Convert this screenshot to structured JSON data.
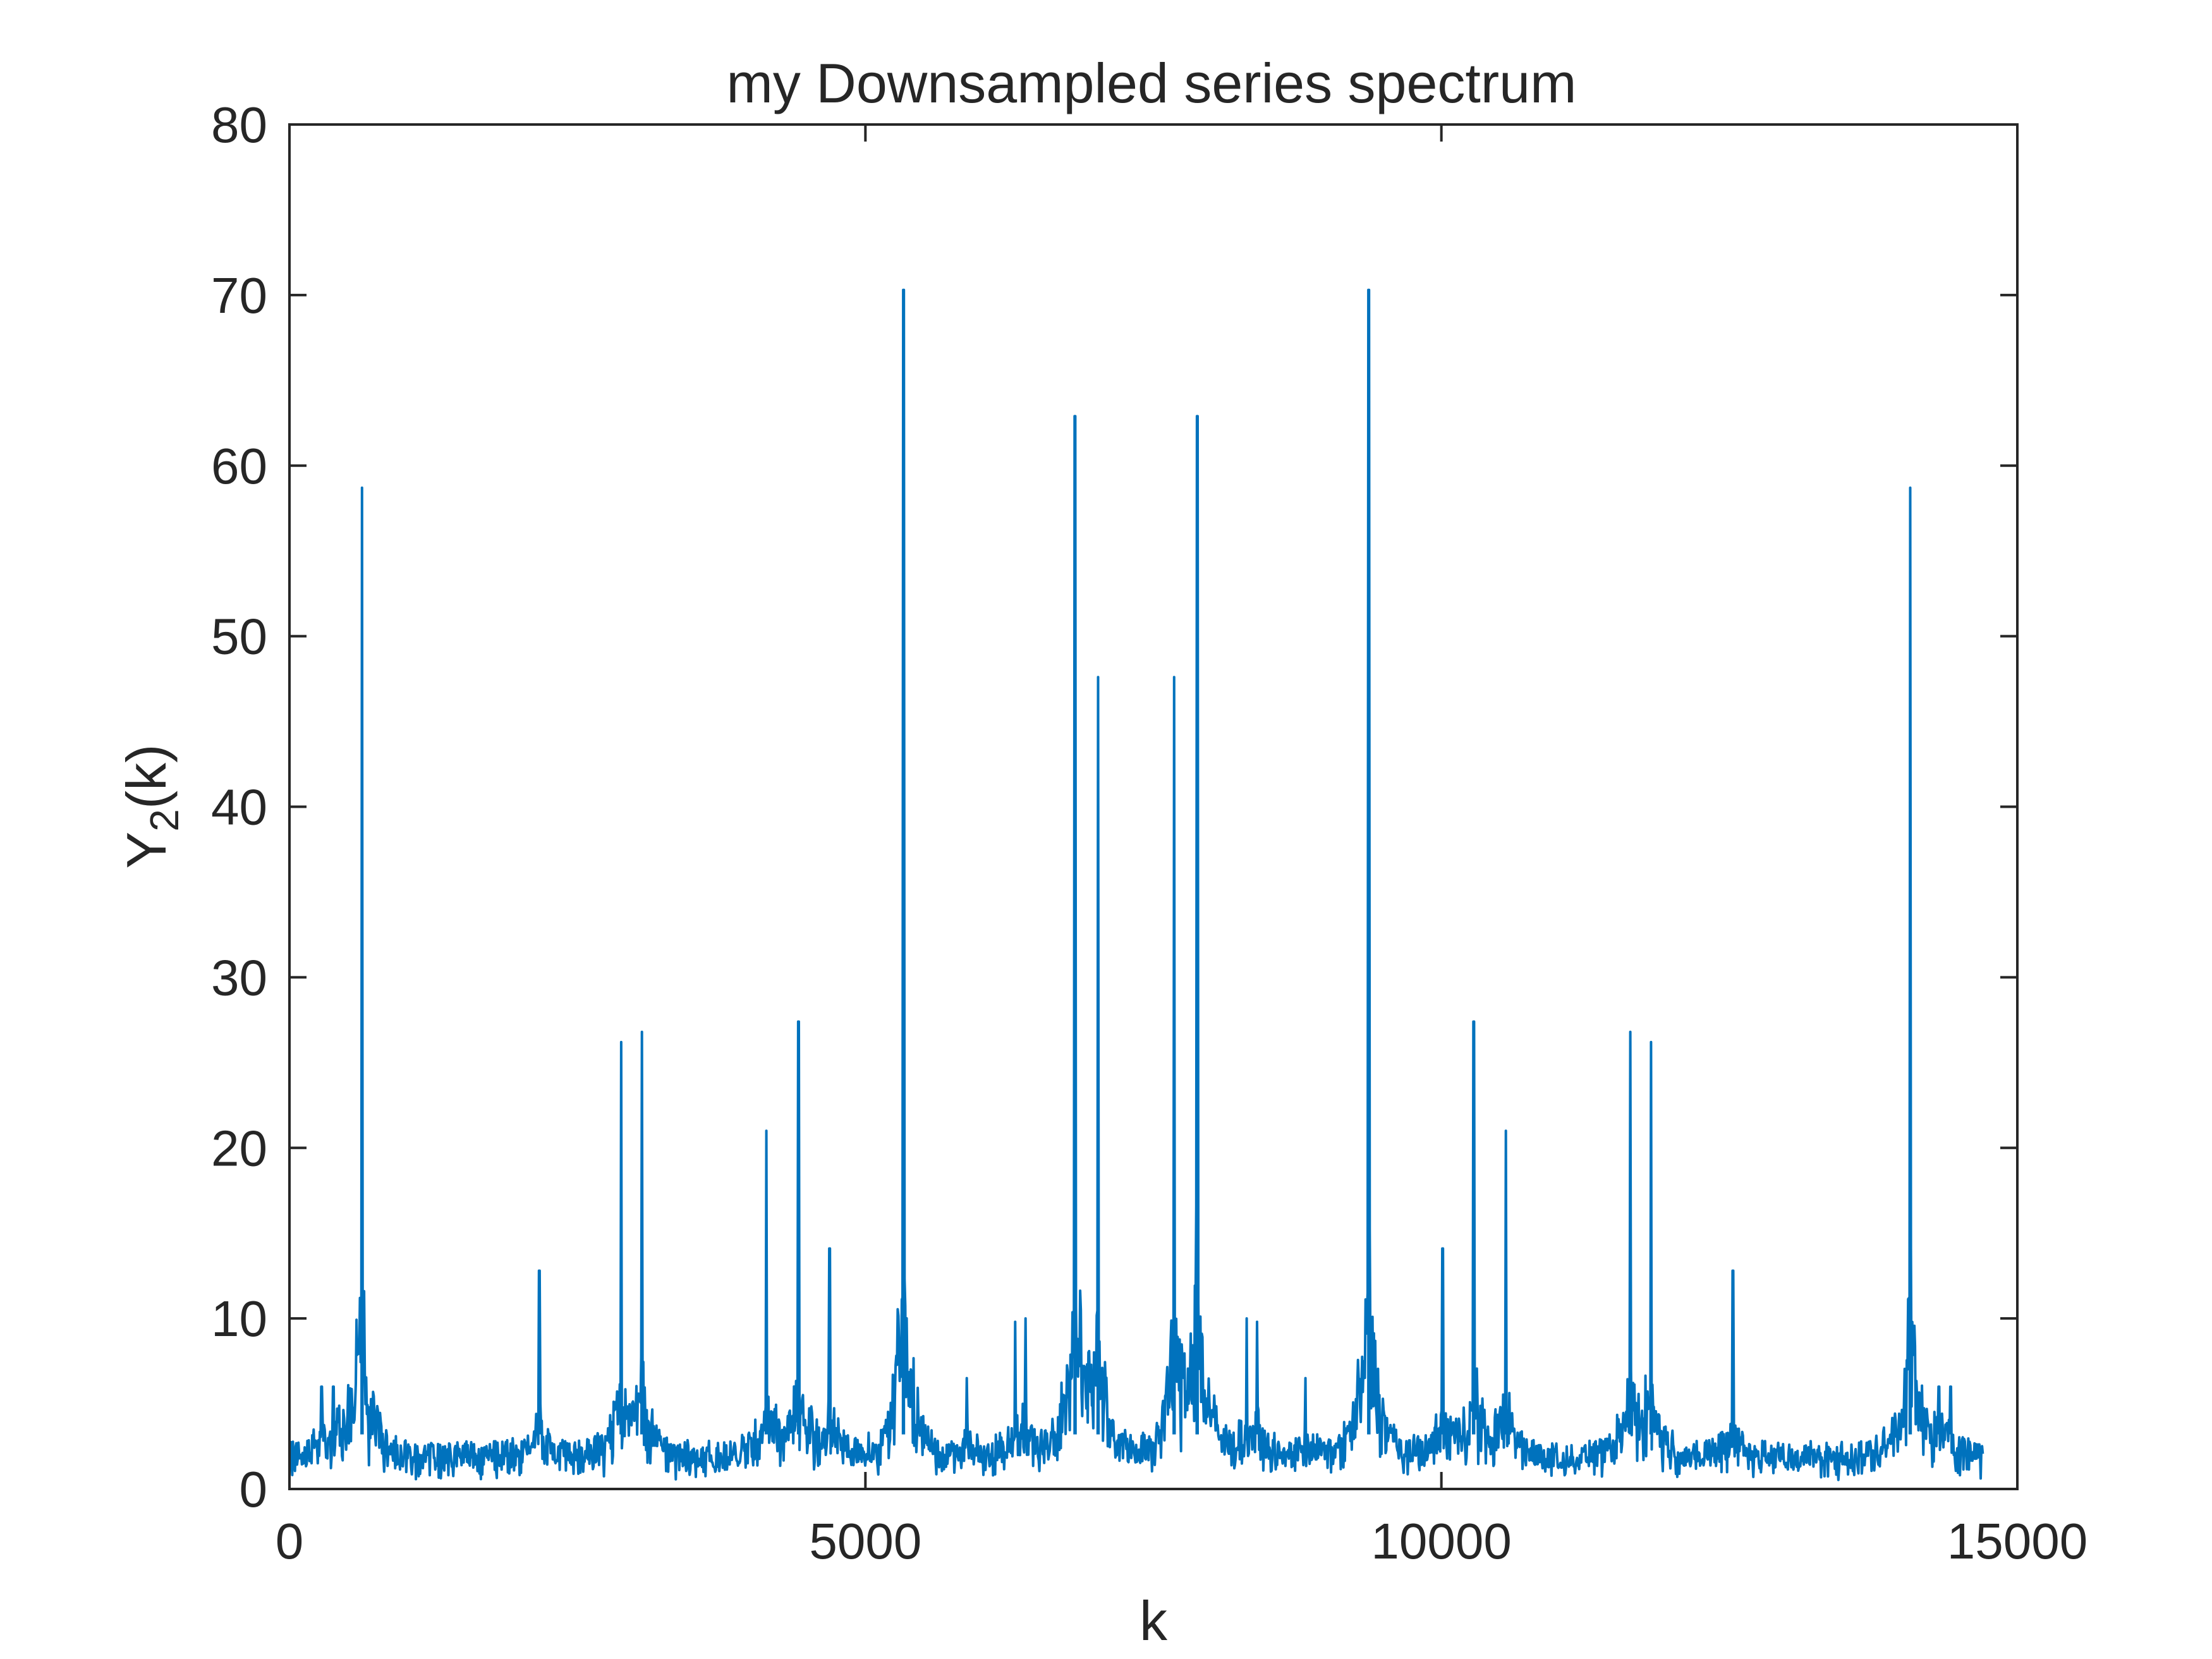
{
  "chart_data": {
    "type": "line",
    "title": "my Downsampled series spectrum",
    "xlabel": "k",
    "ylabel_main": "Y",
    "ylabel_sub": "2",
    "ylabel_tail": "(k)",
    "xlim": [
      0,
      15000
    ],
    "ylim": [
      0,
      80
    ],
    "xticks": [
      0,
      5000,
      10000,
      15000
    ],
    "xtick_labels": [
      "0",
      "5000",
      "10000",
      "15000"
    ],
    "yticks": [
      0,
      10,
      20,
      30,
      40,
      50,
      60,
      70,
      80
    ],
    "ytick_labels": [
      "0",
      "10",
      "20",
      "30",
      "40",
      "50",
      "60",
      "70",
      "80"
    ],
    "grid": false,
    "line_color": "#0072BD",
    "axis_color": "#262626",
    "series": [
      {
        "x_start": 0,
        "x_end": 14700,
        "baseline": 1.2,
        "peaks": [
          {
            "x": 280,
            "y": 6.0
          },
          {
            "x": 380,
            "y": 6.0
          },
          {
            "x": 630,
            "y": 58.7
          },
          {
            "x": 2170,
            "y": 12.8
          },
          {
            "x": 2880,
            "y": 26.2
          },
          {
            "x": 3060,
            "y": 26.8
          },
          {
            "x": 4140,
            "y": 21.0
          },
          {
            "x": 4420,
            "y": 27.4
          },
          {
            "x": 4690,
            "y": 14.1
          },
          {
            "x": 5330,
            "y": 70.3
          },
          {
            "x": 5880,
            "y": 6.5
          },
          {
            "x": 6300,
            "y": 9.8
          },
          {
            "x": 6390,
            "y": 10.0
          },
          {
            "x": 6820,
            "y": 62.9
          },
          {
            "x": 7020,
            "y": 47.6
          },
          {
            "x": 7680,
            "y": 47.6
          },
          {
            "x": 7880,
            "y": 62.9
          },
          {
            "x": 8310,
            "y": 10.0
          },
          {
            "x": 8400,
            "y": 9.8
          },
          {
            "x": 8820,
            "y": 6.5
          },
          {
            "x": 9370,
            "y": 70.3
          },
          {
            "x": 10010,
            "y": 14.1
          },
          {
            "x": 10280,
            "y": 27.4
          },
          {
            "x": 10560,
            "y": 21.0
          },
          {
            "x": 11640,
            "y": 26.8
          },
          {
            "x": 11820,
            "y": 26.2
          },
          {
            "x": 12530,
            "y": 12.8
          },
          {
            "x": 14070,
            "y": 58.7
          },
          {
            "x": 14320,
            "y": 6.0
          },
          {
            "x": 14420,
            "y": 6.0
          }
        ]
      }
    ]
  }
}
